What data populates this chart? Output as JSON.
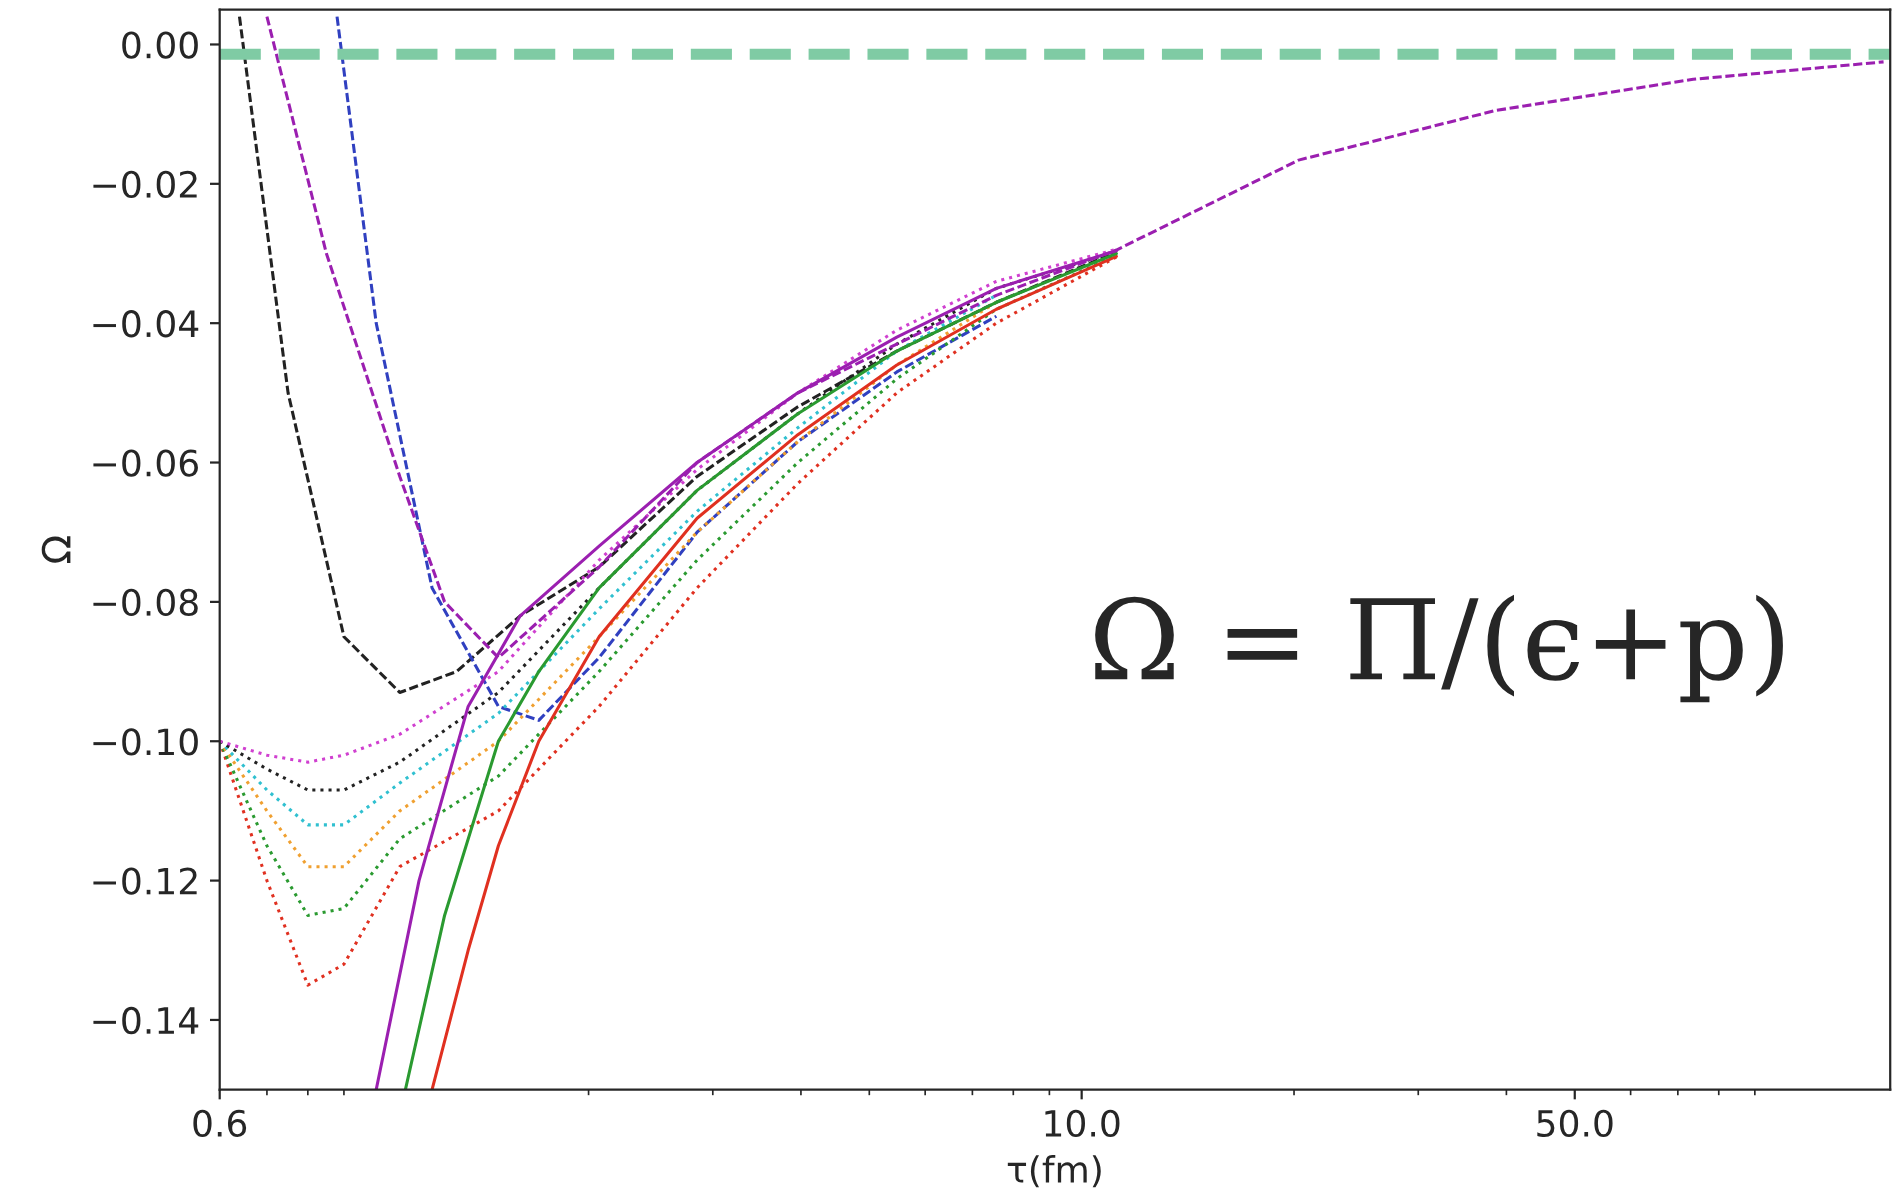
{
  "chart_data": {
    "type": "line",
    "xlabel": "τ(fm)",
    "ylabel": "Ω",
    "log": "x",
    "grid": false,
    "legend": false,
    "xlim": [
      0.6,
      140
    ],
    "xticks": [
      {
        "value": 0.6,
        "label": "0.6"
      },
      {
        "value": 10,
        "label": "10.0"
      },
      {
        "value": 50,
        "label": "50.0"
      }
    ],
    "ylim": [
      -0.15,
      0.005
    ],
    "yticks": [
      {
        "value": 0,
        "label": "0.00"
      },
      {
        "value": -0.02,
        "label": "−0.02"
      },
      {
        "value": -0.04,
        "label": "−0.04"
      },
      {
        "value": -0.06,
        "label": "−0.06"
      },
      {
        "value": -0.08,
        "label": "−0.08"
      },
      {
        "value": -0.1,
        "label": "−0.10"
      },
      {
        "value": -0.12,
        "label": "−0.12"
      },
      {
        "value": -0.14,
        "label": "−0.14"
      }
    ],
    "ref_lines": [
      {
        "axis": "y",
        "value": -0.0014,
        "color": "#7fcba4",
        "line_style": "dashed"
      }
    ],
    "annotations": [
      "Ω = Π/(ϵ+p)"
    ],
    "series": [
      {
        "color": "#222222",
        "line_style": "dashed",
        "x": [
          0.64,
          0.75,
          0.9,
          1.08,
          1.3,
          1.6,
          2.07,
          2.85,
          3.96,
          5.47,
          7.57,
          11.2
        ],
        "values": [
          0.004,
          -0.05,
          -0.085,
          -0.093,
          -0.09,
          -0.082,
          -0.075,
          -0.062,
          -0.052,
          -0.044,
          -0.037,
          -0.0298
        ]
      },
      {
        "color": "#3040c0",
        "line_style": "dashed",
        "x": [
          0.88,
          1.0,
          1.2,
          1.49,
          1.7,
          2.07,
          2.85,
          3.96,
          5.47,
          7.57
        ],
        "values": [
          0.004,
          -0.04,
          -0.078,
          -0.095,
          -0.097,
          -0.088,
          -0.07,
          -0.057,
          -0.047,
          -0.039
        ]
      },
      {
        "color": "#e03020",
        "line_style": "dotted",
        "x": [
          0.6,
          0.7,
          0.8,
          0.9,
          1.08,
          1.49,
          2.07,
          2.85,
          3.96,
          5.47,
          7.57,
          11.2
        ],
        "values": [
          -0.1,
          -0.12,
          -0.135,
          -0.132,
          -0.118,
          -0.11,
          -0.095,
          -0.078,
          -0.063,
          -0.05,
          -0.04,
          -0.0305
        ]
      },
      {
        "color": "#2a9a30",
        "line_style": "dotted",
        "x": [
          0.6,
          0.7,
          0.8,
          0.9,
          1.08,
          1.49,
          2.07,
          2.85,
          3.96,
          5.47,
          7.57,
          11.2
        ],
        "values": [
          -0.1,
          -0.115,
          -0.125,
          -0.124,
          -0.114,
          -0.105,
          -0.09,
          -0.074,
          -0.06,
          -0.048,
          -0.038,
          -0.0303
        ]
      },
      {
        "color": "#f0a030",
        "line_style": "dotted",
        "x": [
          0.6,
          0.7,
          0.8,
          0.9,
          1.08,
          1.49,
          2.07,
          2.85,
          3.96,
          5.47,
          7.57
        ],
        "values": [
          -0.1,
          -0.11,
          -0.118,
          -0.118,
          -0.11,
          -0.1,
          -0.085,
          -0.07,
          -0.057,
          -0.046,
          -0.037
        ]
      },
      {
        "color": "#30c0d0",
        "line_style": "dotted",
        "x": [
          0.6,
          0.7,
          0.8,
          0.9,
          1.08,
          1.49,
          2.07,
          2.85,
          3.96,
          5.47,
          7.57
        ],
        "values": [
          -0.1,
          -0.107,
          -0.112,
          -0.112,
          -0.106,
          -0.096,
          -0.081,
          -0.067,
          -0.055,
          -0.044,
          -0.036
        ]
      },
      {
        "color": "#222222",
        "line_style": "dotted",
        "x": [
          0.6,
          0.7,
          0.8,
          0.9,
          1.08,
          1.49,
          2.07,
          2.85,
          3.96,
          5.47,
          7.57,
          11.2
        ],
        "values": [
          -0.1,
          -0.104,
          -0.107,
          -0.107,
          -0.103,
          -0.093,
          -0.078,
          -0.064,
          -0.053,
          -0.043,
          -0.035,
          -0.0297
        ]
      },
      {
        "color": "#d040d0",
        "line_style": "dotted",
        "x": [
          0.6,
          0.7,
          0.8,
          0.9,
          1.08,
          1.49,
          2.07,
          2.85,
          3.96,
          5.47,
          7.57,
          11.2
        ],
        "values": [
          -0.1,
          -0.102,
          -0.103,
          -0.102,
          -0.099,
          -0.09,
          -0.074,
          -0.061,
          -0.05,
          -0.041,
          -0.034,
          -0.0294
        ]
      },
      {
        "color": "#e03020",
        "line_style": "solid",
        "x": [
          1.2,
          1.35,
          1.49,
          1.7,
          2.07,
          2.85,
          3.96,
          5.47,
          7.57,
          11.2
        ],
        "values": [
          -0.15,
          -0.13,
          -0.115,
          -0.1,
          -0.085,
          -0.068,
          -0.056,
          -0.046,
          -0.038,
          -0.0304
        ]
      },
      {
        "color": "#2a9a30",
        "line_style": "solid",
        "x": [
          1.1,
          1.25,
          1.49,
          1.7,
          2.07,
          2.85,
          3.96,
          5.47,
          7.57,
          11.2
        ],
        "values": [
          -0.15,
          -0.125,
          -0.1,
          -0.09,
          -0.078,
          -0.064,
          -0.053,
          -0.044,
          -0.037,
          -0.03
        ]
      },
      {
        "color": "#9b1fb0",
        "line_style": "solid",
        "x": [
          1.0,
          1.15,
          1.35,
          1.6,
          2.07,
          2.85,
          3.96,
          5.47,
          7.57,
          11.2
        ],
        "values": [
          -0.15,
          -0.12,
          -0.095,
          -0.082,
          -0.072,
          -0.06,
          -0.05,
          -0.042,
          -0.035,
          -0.0296
        ]
      },
      {
        "color": "#9b1fb0",
        "line_style": "dashed",
        "x": [
          0.7,
          0.85,
          1.08,
          1.25,
          1.49,
          2.07,
          2.85,
          3.96,
          5.47,
          7.57,
          11.2,
          20.3,
          38.5,
          73.6,
          137
        ],
        "values": [
          0.004,
          -0.03,
          -0.062,
          -0.08,
          -0.088,
          -0.075,
          -0.06,
          -0.05,
          -0.043,
          -0.036,
          -0.0295,
          -0.0166,
          -0.0095,
          -0.005,
          -0.0025
        ]
      }
    ]
  }
}
